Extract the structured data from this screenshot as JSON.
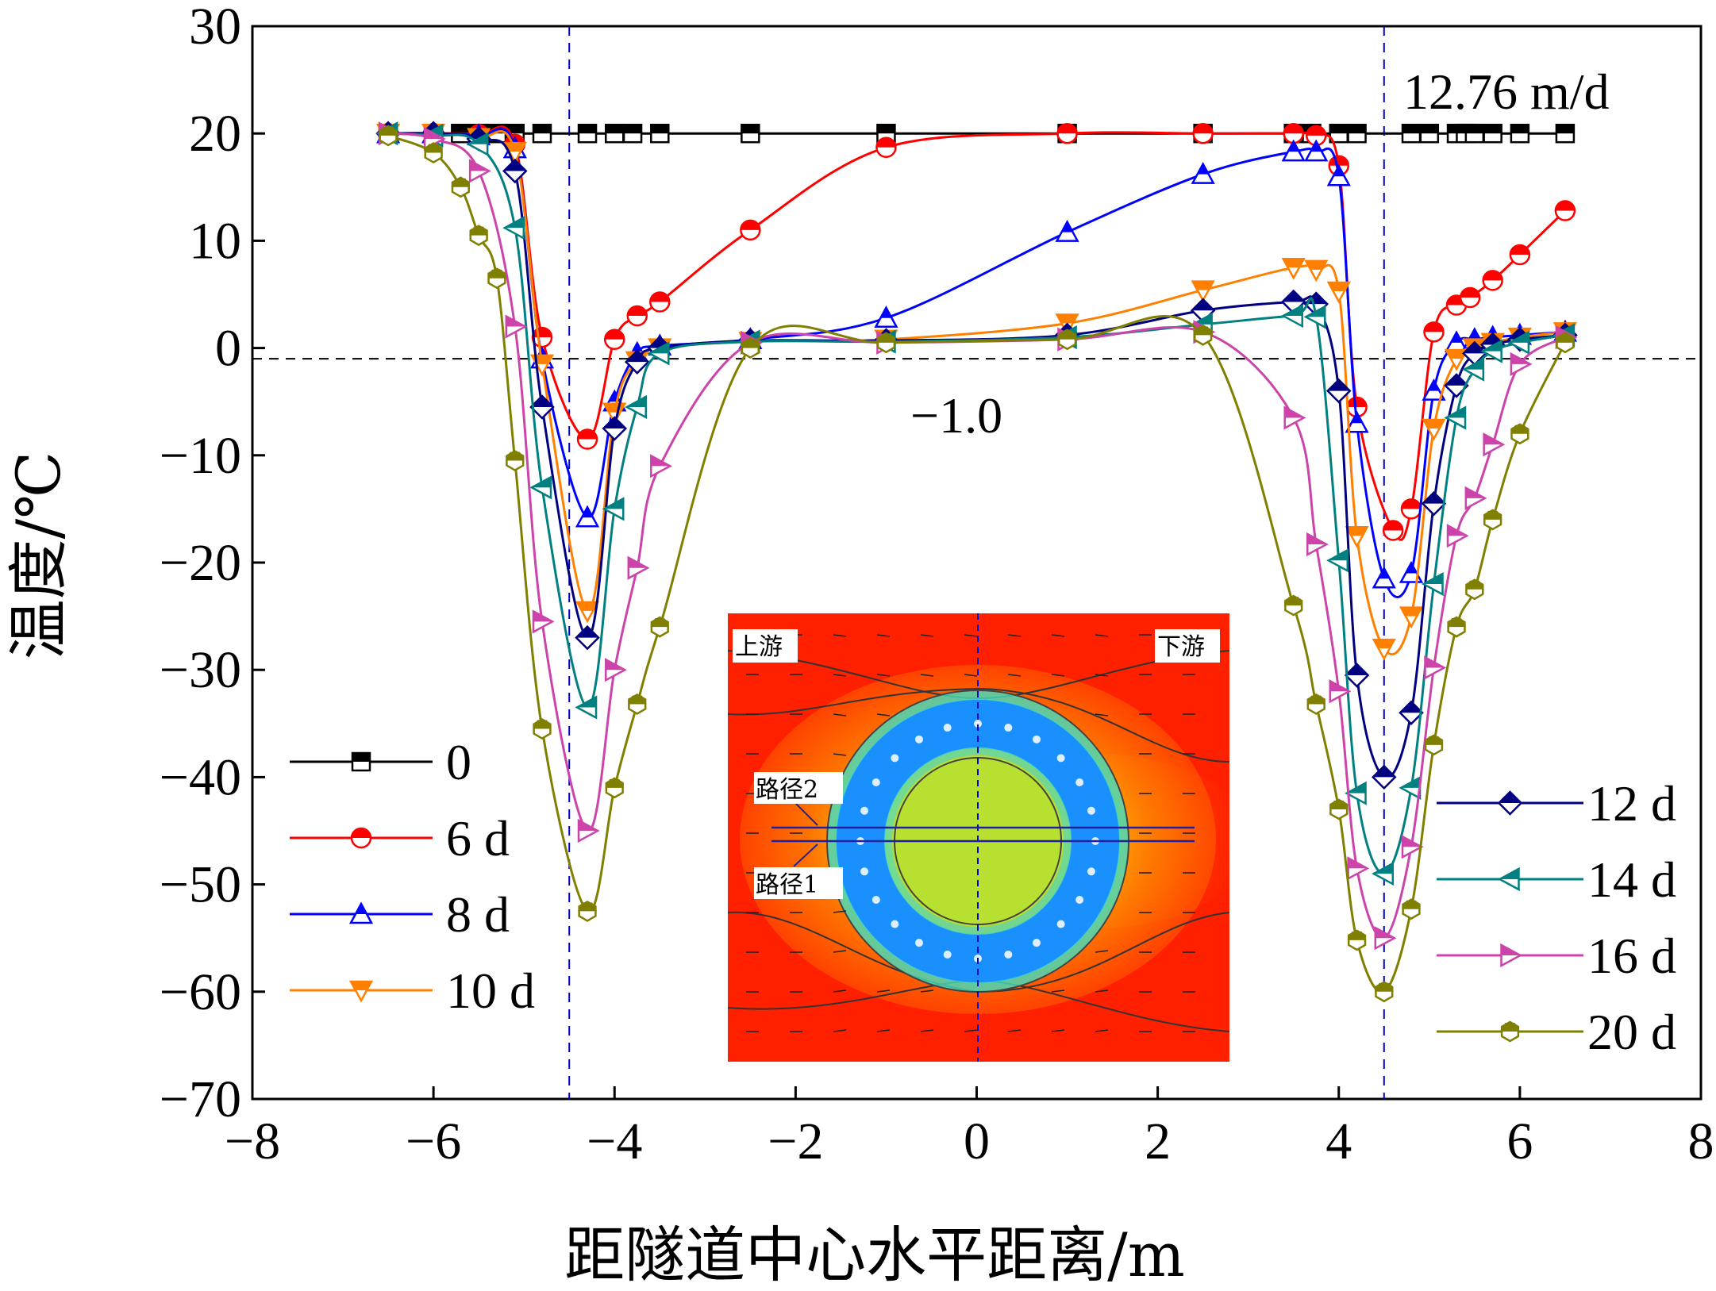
{
  "chart_data": {
    "type": "line",
    "title": "",
    "xlabel": "距隧道中心水平距离/m",
    "ylabel": "温度/℃",
    "xlim": [
      -8,
      8
    ],
    "ylim": [
      -70,
      30
    ],
    "xticks": [
      -8,
      -6,
      -4,
      -2,
      0,
      2,
      4,
      6,
      8
    ],
    "yticks": [
      30,
      20,
      10,
      0,
      -10,
      -20,
      -30,
      -40,
      -50,
      -60,
      -70
    ],
    "xtick_labels": [
      "−8",
      "−6",
      "−4",
      "−2",
      "0",
      "2",
      "4",
      "6",
      "8"
    ],
    "ytick_labels": [
      "30",
      "20",
      "10",
      "0",
      "−10",
      "−20",
      "−30",
      "−40",
      "−50",
      "−60",
      "−70"
    ],
    "grid": false,
    "reference_lines": {
      "horizontal_y": -1.0,
      "horizontal_label": "−1.0",
      "vertical_x": [
        -4.5,
        4.5
      ]
    },
    "flow_velocity_label": "12.76 m/d",
    "series": [
      {
        "name": "0",
        "color": "#000000",
        "marker": "square",
        "x": [
          -6.5,
          -6.0,
          -5.7,
          -5.5,
          -5.3,
          -5.1,
          -4.8,
          -4.3,
          -4.0,
          -3.8,
          -3.5,
          -2.5,
          -1.0,
          1.0,
          2.5,
          3.5,
          3.7,
          4.0,
          4.2,
          4.8,
          5.0,
          5.3,
          5.4,
          5.5,
          5.7,
          6.0,
          6.5
        ],
        "y": [
          20,
          20,
          20,
          20,
          20,
          20,
          20,
          20,
          20,
          20,
          20,
          20,
          20,
          20,
          20,
          20,
          20,
          20,
          20,
          20,
          20,
          20,
          20,
          20,
          20,
          20,
          20
        ]
      },
      {
        "name": "6 d",
        "color": "#ff0000",
        "marker": "circle",
        "x": [
          -6.5,
          -6.0,
          -5.5,
          -5.1,
          -4.8,
          -4.3,
          -4.0,
          -3.75,
          -3.5,
          -2.5,
          -1.0,
          1.0,
          2.5,
          3.5,
          3.75,
          4.0,
          4.2,
          4.6,
          4.8,
          5.05,
          5.3,
          5.45,
          5.7,
          6.0,
          6.5
        ],
        "y": [
          20,
          20,
          19.9,
          19,
          1,
          -8.5,
          0.8,
          3,
          4.3,
          11,
          18.7,
          20,
          20,
          20,
          19.8,
          17,
          -5.5,
          -17,
          -15,
          1.5,
          4,
          4.7,
          6.3,
          8.7,
          12.8
        ]
      },
      {
        "name": "8 d",
        "color": "#0000ff",
        "marker": "triangle-up",
        "x": [
          -6.5,
          -6.0,
          -5.5,
          -5.1,
          -4.8,
          -4.3,
          -4.0,
          -3.75,
          -3.5,
          -2.5,
          -1.0,
          1.0,
          2.5,
          3.5,
          3.75,
          4.0,
          4.2,
          4.5,
          4.8,
          5.05,
          5.3,
          5.5,
          5.7,
          6.0,
          6.5
        ],
        "y": [
          20,
          20,
          19.8,
          18.6,
          -1,
          -15.8,
          -5,
          -0.5,
          0.2,
          0.8,
          2.8,
          10.8,
          16.2,
          18.3,
          18.3,
          16,
          -7,
          -21.5,
          -21,
          -4,
          0.5,
          0.8,
          1,
          1.2,
          1.5
        ]
      },
      {
        "name": "10 d",
        "color": "#ff8000",
        "marker": "triangle-down",
        "x": [
          -6.5,
          -6.0,
          -5.5,
          -5.1,
          -4.8,
          -4.3,
          -4.0,
          -3.75,
          -3.5,
          -2.5,
          -1.0,
          1.0,
          2.5,
          3.5,
          3.75,
          4.0,
          4.2,
          4.5,
          4.8,
          5.05,
          5.3,
          5.5,
          5.7,
          6.0,
          6.5
        ],
        "y": [
          20,
          20,
          19.6,
          18.3,
          -1.5,
          -24.5,
          -6,
          -1.2,
          0,
          0.6,
          0.8,
          2.3,
          5.4,
          7.5,
          7.3,
          5.3,
          -17.5,
          -28,
          -25,
          -7.5,
          -1,
          0,
          0.5,
          1,
          1.5
        ]
      },
      {
        "name": "12 d",
        "color": "#000080",
        "marker": "diamond",
        "x": [
          -6.5,
          -6.0,
          -5.5,
          -5.1,
          -4.8,
          -4.3,
          -4.0,
          -3.75,
          -3.5,
          -2.5,
          -1.0,
          1.0,
          2.5,
          3.5,
          3.75,
          4.0,
          4.2,
          4.5,
          4.8,
          5.05,
          5.3,
          5.5,
          5.7,
          6.0,
          6.5
        ],
        "y": [
          20,
          20,
          19.5,
          16.5,
          -5.5,
          -27,
          -7.5,
          -1.3,
          0,
          0.7,
          0.7,
          1.2,
          3.5,
          4.3,
          4.1,
          -4,
          -30.5,
          -40,
          -34,
          -14.5,
          -3.5,
          -0.5,
          0.3,
          0.8,
          1.2
        ]
      },
      {
        "name": "14 d",
        "color": "#008080",
        "marker": "triangle-left",
        "x": [
          -6.5,
          -6.0,
          -5.5,
          -5.1,
          -4.8,
          -4.3,
          -4.0,
          -3.75,
          -3.5,
          -2.5,
          -1.0,
          1.0,
          2.5,
          3.5,
          3.75,
          4.0,
          4.2,
          4.5,
          4.8,
          5.05,
          5.3,
          5.5,
          5.7,
          6.0,
          6.5
        ],
        "y": [
          20,
          19.8,
          19,
          11.2,
          -13,
          -33.5,
          -15,
          -5.5,
          -0.5,
          0.6,
          0.6,
          1,
          2.2,
          3,
          2.9,
          -19.8,
          -41.5,
          -49,
          -41,
          -22,
          -6.5,
          -2,
          -0.3,
          0.5,
          1.2
        ]
      },
      {
        "name": "16 d",
        "color": "#cc44aa",
        "marker": "triangle-right",
        "x": [
          -6.5,
          -6.0,
          -5.5,
          -5.1,
          -4.8,
          -4.3,
          -4.0,
          -3.75,
          -3.5,
          -2.5,
          -1.0,
          1.0,
          2.5,
          3.5,
          3.75,
          4.0,
          4.2,
          4.5,
          4.8,
          5.05,
          5.3,
          5.5,
          5.7,
          6.0,
          6.5
        ],
        "y": [
          20,
          19.5,
          16.5,
          2,
          -25.5,
          -45,
          -30,
          -20.5,
          -11,
          0.5,
          0.5,
          0.8,
          1.5,
          -6.5,
          -18.3,
          -32,
          -48.5,
          -55,
          -46.5,
          -29.8,
          -17.5,
          -14,
          -9,
          -1.5,
          1
        ]
      },
      {
        "name": "20 d",
        "color": "#808000",
        "marker": "hexagon",
        "x": [
          -6.5,
          -6.0,
          -5.7,
          -5.5,
          -5.3,
          -5.1,
          -4.8,
          -4.3,
          -4.0,
          -3.75,
          -3.5,
          -2.5,
          -1.0,
          1.0,
          2.5,
          3.5,
          3.75,
          4.0,
          4.2,
          4.5,
          4.8,
          5.05,
          5.3,
          5.5,
          5.7,
          6.0,
          6.5
        ],
        "y": [
          19.8,
          18.2,
          15,
          10.5,
          6.5,
          -10.5,
          -35.5,
          -52.5,
          -41,
          -33.2,
          -26,
          0,
          0.5,
          0.8,
          1.2,
          -24,
          -33.2,
          -43,
          -55.2,
          -60,
          -52.3,
          -37,
          -26,
          -22.5,
          -16,
          -8,
          0.5
        ]
      }
    ],
    "legend_left": [
      "0",
      "6 d",
      "8 d",
      "10 d"
    ],
    "legend_right": [
      "12 d",
      "14 d",
      "16 d",
      "20 d"
    ],
    "inset": {
      "label_upstream": "上游",
      "label_downstream": "下游",
      "path2_label": "路径2",
      "path1_label": "路径1",
      "colors": {
        "background": "#ff2000",
        "ring": "#1a90ff",
        "core": "#b8e030"
      }
    }
  }
}
